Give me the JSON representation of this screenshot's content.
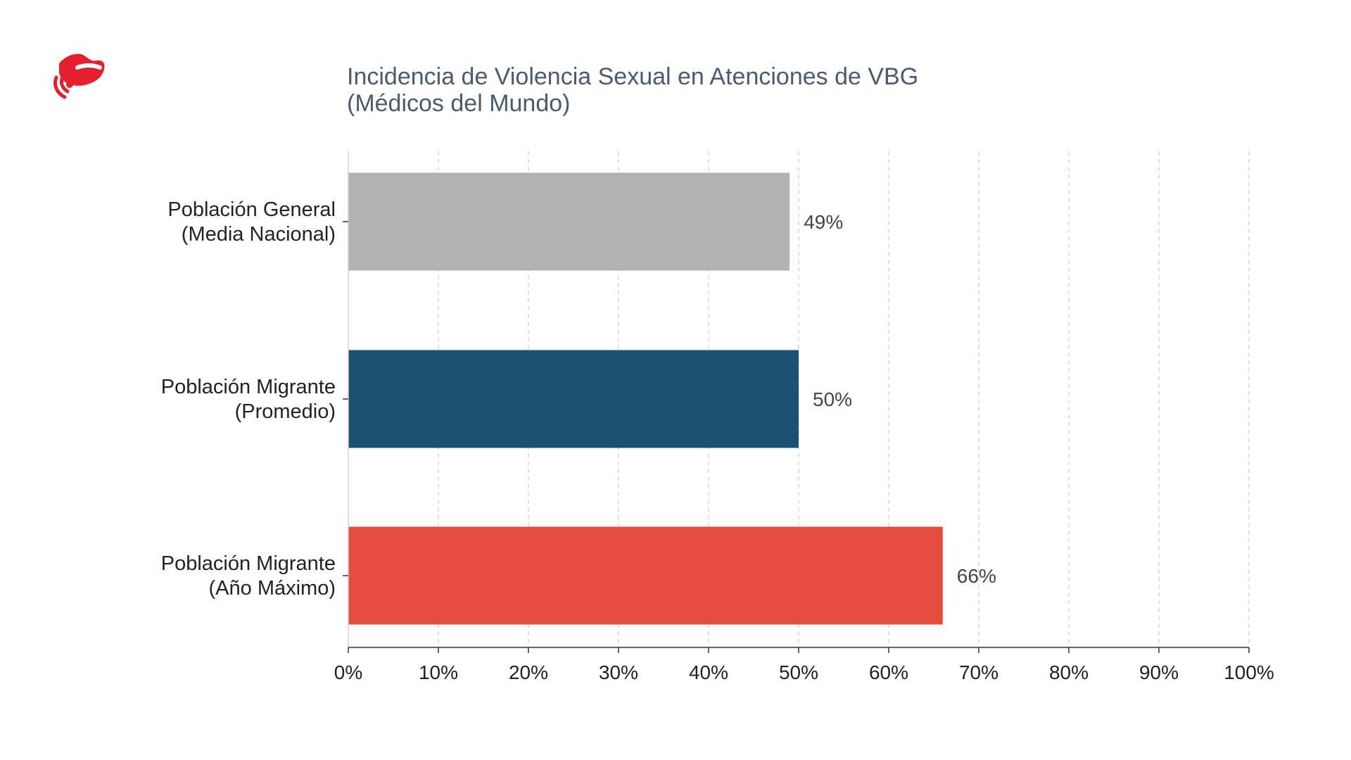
{
  "brand": {
    "logo_icon": "red-chat-bubble-logo-icon",
    "logo_color": "#e5202e"
  },
  "chart_data": {
    "type": "bar",
    "orientation": "horizontal",
    "title_lines": [
      "Incidencia de Violencia Sexual en Atenciones de VBG",
      "(Médicos del Mundo)"
    ],
    "categories": [
      [
        "Población General",
        "(Media Nacional)"
      ],
      [
        "Población Migrante",
        "(Promedio)"
      ],
      [
        "Población Migrante",
        "(Año Máximo)"
      ]
    ],
    "values": [
      49,
      50,
      66
    ],
    "value_labels": [
      "49%",
      "50%",
      "66%"
    ],
    "colors": [
      "#b1b1b1",
      "#1b5273",
      "#e54d3e"
    ],
    "xlim": [
      0,
      100
    ],
    "x_ticks": [
      0,
      10,
      20,
      30,
      40,
      50,
      60,
      70,
      80,
      90,
      100
    ],
    "x_tick_labels": [
      "0%",
      "10%",
      "20%",
      "30%",
      "40%",
      "50%",
      "60%",
      "70%",
      "80%",
      "90%",
      "100%"
    ],
    "grid": "vertical-dashed",
    "legend": "none"
  }
}
